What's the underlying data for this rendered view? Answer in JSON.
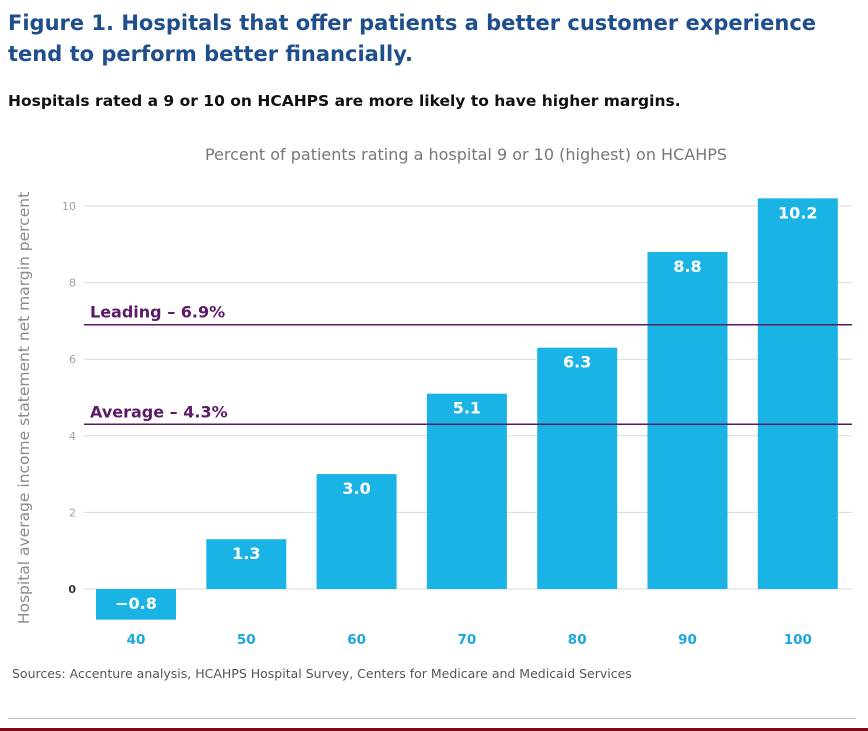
{
  "figure": {
    "title": "Figure 1. Hospitals that offer patients a better customer experience tend to perform better financially.",
    "subtitle": "Hospitals rated a 9 or 10 on HCAHPS are more likely to have higher margins.",
    "sources": "Sources: Accenture analysis, HCAHPS Hospital Survey, Centers for Medicare and Medicaid Services"
  },
  "colors": {
    "title": "#1f4e8c",
    "bar": "#1ab3e6",
    "bar_label": "#ffffff",
    "reference_line": "#5b1a66",
    "reference_label": "#5b1a66",
    "grid": "#d9d9d9",
    "axis_text": "#777777",
    "category_text": "#1aa7e0"
  },
  "chart_data": {
    "type": "bar",
    "title": "Percent of patients rating a hospital 9 or 10 (highest) on HCAHPS",
    "xlabel": "",
    "ylabel": "Hospital average income statement net margin percent",
    "categories": [
      "40",
      "50",
      "60",
      "70",
      "80",
      "90",
      "100"
    ],
    "values": [
      -0.8,
      1.3,
      3.0,
      5.1,
      6.3,
      8.8,
      10.2
    ],
    "data_labels": [
      "−0.8",
      "1.3",
      "3.0",
      "5.1",
      "6.3",
      "8.8",
      "10.2"
    ],
    "ylim": [
      -0.8,
      10.2
    ],
    "yticks": [
      0,
      2,
      4,
      6,
      8,
      10
    ],
    "grid": true,
    "legend": "none",
    "reference_lines": [
      {
        "label": "Leading – 6.9%",
        "value": 6.9
      },
      {
        "label": "Average – 4.3%",
        "value": 4.3
      }
    ]
  }
}
